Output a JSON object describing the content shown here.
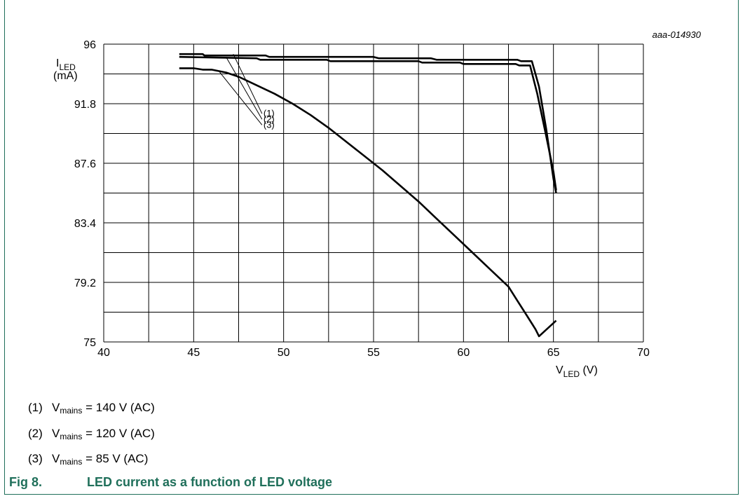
{
  "chart_data": {
    "type": "line",
    "figure_id": "aaa-014930",
    "ylabel_main": "I",
    "ylabel_sub": "LED",
    "ylabel_unit": "(mA)",
    "xlabel_main": "V",
    "xlabel_sub": "LED",
    "xlabel_unit": " (V)",
    "xlim": [
      40,
      70
    ],
    "ylim": [
      75,
      96
    ],
    "x_ticks": [
      40,
      45,
      50,
      55,
      60,
      65,
      70
    ],
    "x_tick_labels": [
      "40",
      "45",
      "50",
      "55",
      "60",
      "65",
      "70"
    ],
    "y_ticks": [
      75,
      79.2,
      83.4,
      87.6,
      91.8,
      96
    ],
    "y_tick_labels": [
      "75",
      "79.2",
      "83.4",
      "87.6",
      "91.8",
      "96"
    ],
    "grid": true,
    "series": [
      {
        "name": "(1)",
        "points": [
          [
            44.2,
            95.3
          ],
          [
            45.5,
            95.3
          ],
          [
            45.6,
            95.2
          ],
          [
            49,
            95.2
          ],
          [
            49.2,
            95.1
          ],
          [
            55,
            95.1
          ],
          [
            55.3,
            95.0
          ],
          [
            58.2,
            95.0
          ],
          [
            58.5,
            94.9
          ],
          [
            63,
            94.9
          ],
          [
            63.2,
            94.8
          ],
          [
            63.8,
            94.8
          ],
          [
            64.2,
            93.0
          ],
          [
            64.6,
            90.0
          ],
          [
            65.0,
            86.5
          ],
          [
            65.15,
            85.5
          ]
        ]
      },
      {
        "name": "(2)",
        "points": [
          [
            44.2,
            95.1
          ],
          [
            48.5,
            95.0
          ],
          [
            48.7,
            94.9
          ],
          [
            52.4,
            94.9
          ],
          [
            52.6,
            94.8
          ],
          [
            57.5,
            94.8
          ],
          [
            57.7,
            94.7
          ],
          [
            59.8,
            94.7
          ],
          [
            60,
            94.6
          ],
          [
            62.9,
            94.6
          ],
          [
            63.1,
            94.5
          ],
          [
            63.7,
            94.5
          ],
          [
            64.1,
            92.5
          ],
          [
            64.6,
            89.5
          ],
          [
            65.0,
            87.0
          ],
          [
            65.15,
            85.7
          ]
        ]
      },
      {
        "name": "(3)",
        "points": [
          [
            44.2,
            94.3
          ],
          [
            45.0,
            94.3
          ],
          [
            45.5,
            94.2
          ],
          [
            46.0,
            94.2
          ],
          [
            46.8,
            94.0
          ],
          [
            47.5,
            93.7
          ],
          [
            48.5,
            93.1
          ],
          [
            49.5,
            92.5
          ],
          [
            50.5,
            91.8
          ],
          [
            51.5,
            91.0
          ],
          [
            52.5,
            90.1
          ],
          [
            53.5,
            89.1
          ],
          [
            54.5,
            88.1
          ],
          [
            55.5,
            87.1
          ],
          [
            56.5,
            86.0
          ],
          [
            57.5,
            84.9
          ],
          [
            58.5,
            83.7
          ],
          [
            59.5,
            82.5
          ],
          [
            60.5,
            81.3
          ],
          [
            61.5,
            80.1
          ],
          [
            62.5,
            78.9
          ],
          [
            63.0,
            77.9
          ],
          [
            63.5,
            76.9
          ],
          [
            64.0,
            75.9
          ],
          [
            64.2,
            75.4
          ],
          [
            65.15,
            76.5
          ]
        ]
      }
    ],
    "annotation_labels": [
      "(1)",
      "(2)",
      "(3)"
    ]
  },
  "legend": [
    {
      "num": "(1)",
      "prefix": "V",
      "sub": "mains",
      "text": " = 140 V (AC)"
    },
    {
      "num": "(2)",
      "prefix": "V",
      "sub": "mains",
      "text": " = 120 V (AC)"
    },
    {
      "num": "(3)",
      "prefix": "V",
      "sub": "mains",
      "text": " = 85 V (AC)"
    }
  ],
  "caption": {
    "number": "Fig 8.",
    "title": "LED current as a function of LED voltage"
  },
  "colors": {
    "frame": "#1f6f5a",
    "caption": "#1f6f5a",
    "line": "#000000",
    "grid": "#000000"
  }
}
